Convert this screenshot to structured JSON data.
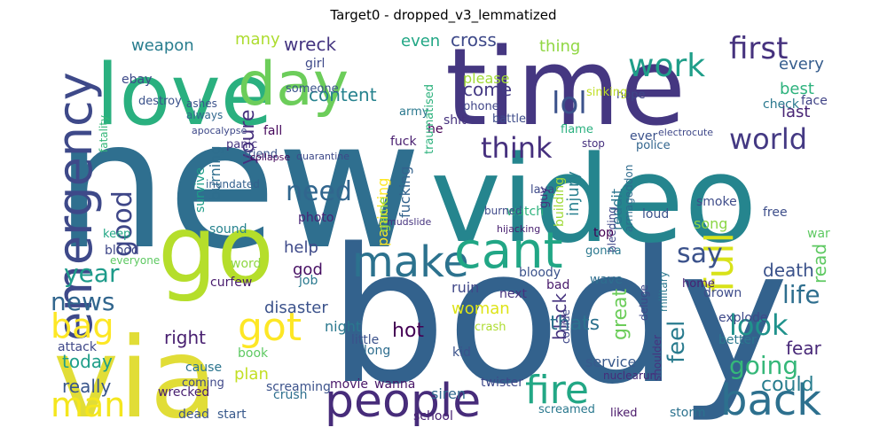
{
  "title": "Target0 - dropped_v3_lemmatized",
  "words": [
    {
      "text": "new",
      "color": "#2f6f8f"
    },
    {
      "text": "body",
      "color": "#33628d"
    },
    {
      "text": "time",
      "color": "#453781"
    },
    {
      "text": "video",
      "color": "#25858e"
    },
    {
      "text": "via",
      "color": "#e1dd37"
    },
    {
      "text": "go",
      "color": "#b5de2b"
    },
    {
      "text": "love",
      "color": "#2ab07f"
    },
    {
      "text": "day",
      "color": "#6ccd5a"
    },
    {
      "text": "emergency",
      "color": "#3e4989"
    },
    {
      "text": "people",
      "color": "#472c7a"
    },
    {
      "text": "make",
      "color": "#2c728e"
    },
    {
      "text": "cant",
      "color": "#21a685"
    },
    {
      "text": "fire",
      "color": "#22a785"
    },
    {
      "text": "back",
      "color": "#2d708e"
    },
    {
      "text": "full",
      "color": "#d8e219"
    },
    {
      "text": "bag",
      "color": "#fde725"
    },
    {
      "text": "got",
      "color": "#fde725"
    },
    {
      "text": "man",
      "color": "#f4e61e"
    },
    {
      "text": "work",
      "color": "#1f9e89"
    },
    {
      "text": "first",
      "color": "#46327e"
    },
    {
      "text": "lol",
      "color": "#3b528b"
    },
    {
      "text": "world",
      "color": "#443983"
    },
    {
      "text": "think",
      "color": "#46307e"
    },
    {
      "text": "look",
      "color": "#20928c"
    },
    {
      "text": "going",
      "color": "#35b779"
    },
    {
      "text": "life",
      "color": "#2e6e8e"
    },
    {
      "text": "news",
      "color": "#31668e"
    },
    {
      "text": "year",
      "color": "#1e9b8a"
    },
    {
      "text": "good",
      "color": "#3f4788"
    },
    {
      "text": "need",
      "color": "#31668e"
    },
    {
      "text": "say",
      "color": "#3b528b"
    },
    {
      "text": "feel",
      "color": "#297b8e"
    },
    {
      "text": "could",
      "color": "#287d8e"
    },
    {
      "text": "right",
      "color": "#481f70"
    },
    {
      "text": "fear",
      "color": "#482878"
    },
    {
      "text": "death",
      "color": "#3b528b"
    },
    {
      "text": "read",
      "color": "#5ec962"
    },
    {
      "text": "today",
      "color": "#1f9e89"
    },
    {
      "text": "really",
      "color": "#39568c"
    },
    {
      "text": "weapon",
      "color": "#287d8e"
    },
    {
      "text": "many",
      "color": "#addc30"
    },
    {
      "text": "wreck",
      "color": "#453581"
    },
    {
      "text": "even",
      "color": "#22a785"
    },
    {
      "text": "cross",
      "color": "#3e4989"
    },
    {
      "text": "thing",
      "color": "#90d743"
    },
    {
      "text": "every",
      "color": "#365d8d"
    },
    {
      "text": "best",
      "color": "#2db27d"
    },
    {
      "text": "last",
      "color": "#482475"
    },
    {
      "text": "come",
      "color": "#443983"
    },
    {
      "text": "content",
      "color": "#26828e"
    },
    {
      "text": "please",
      "color": "#a2da37"
    },
    {
      "text": "help",
      "color": "#3e4a89"
    },
    {
      "text": "god",
      "color": "#471063"
    },
    {
      "text": "disaster",
      "color": "#3b528b"
    },
    {
      "text": "great",
      "color": "#6ccd5a"
    },
    {
      "text": "hot",
      "color": "#440154"
    },
    {
      "text": "black",
      "color": "#46337f"
    },
    {
      "text": "woman",
      "color": "#dde318"
    },
    {
      "text": "night",
      "color": "#2a788e"
    },
    {
      "text": "ruin",
      "color": "#3f4788"
    },
    {
      "text": "thats",
      "color": "#2c718e"
    },
    {
      "text": "fire",
      "color": "#22a785"
    },
    {
      "text": "service",
      "color": "#38598c"
    },
    {
      "text": "siren",
      "color": "#31688e"
    },
    {
      "text": "school",
      "color": "#482173"
    },
    {
      "text": "movie",
      "color": "#481668"
    },
    {
      "text": "wanna",
      "color": "#481668"
    },
    {
      "text": "plan",
      "color": "#c2df23"
    },
    {
      "text": "screaming",
      "color": "#3b528b"
    },
    {
      "text": "injury",
      "color": "#277f8e"
    },
    {
      "text": "burning",
      "color": "#2e6e8e"
    },
    {
      "text": "youre",
      "color": "#46307e"
    },
    {
      "text": "ebay",
      "color": "#3e4a89"
    },
    {
      "text": "fatality",
      "color": "#35b779"
    },
    {
      "text": "girl",
      "color": "#3e4989"
    },
    {
      "text": "someone",
      "color": "#3a538b"
    },
    {
      "text": "always",
      "color": "#31688e"
    },
    {
      "text": "fall",
      "color": "#46085c"
    },
    {
      "text": "panic",
      "color": "#46337f"
    },
    {
      "text": "friend",
      "color": "#3b528b"
    },
    {
      "text": "fuck",
      "color": "#481d6f"
    },
    {
      "text": "shit",
      "color": "#46327e"
    },
    {
      "text": "he",
      "color": "#440154"
    },
    {
      "text": "army",
      "color": "#2a788e"
    },
    {
      "text": "phone",
      "color": "#404588"
    },
    {
      "text": "battle",
      "color": "#3e4c8a"
    },
    {
      "text": "flame",
      "color": "#2ab07f"
    },
    {
      "text": "stop",
      "color": "#46307e"
    },
    {
      "text": "ever",
      "color": "#3b528b"
    },
    {
      "text": "police",
      "color": "#32658e"
    },
    {
      "text": "smoke",
      "color": "#3e4c8a"
    },
    {
      "text": "song",
      "color": "#8bd646"
    },
    {
      "text": "war",
      "color": "#5ec962"
    },
    {
      "text": "check",
      "color": "#2a788e"
    },
    {
      "text": "face",
      "color": "#414487"
    },
    {
      "text": "hope",
      "color": "#3f4788"
    },
    {
      "text": "sinking",
      "color": "#c0df25"
    },
    {
      "text": "electrocute",
      "color": "#3f4889"
    },
    {
      "text": "lava",
      "color": "#3e4a89"
    },
    {
      "text": "watch",
      "color": "#2db27d"
    },
    {
      "text": "guy",
      "color": "#46327e"
    },
    {
      "text": "reddit",
      "color": "#2b758e"
    },
    {
      "text": "loud",
      "color": "#3b528b"
    },
    {
      "text": "bleeding",
      "color": "#3f4788"
    },
    {
      "text": "armageddon",
      "color": "#2f6c8e"
    },
    {
      "text": "free",
      "color": "#3d4e8a"
    },
    {
      "text": "top",
      "color": "#440154"
    },
    {
      "text": "fucking",
      "color": "#33638d"
    },
    {
      "text": "building",
      "color": "#a0da39"
    },
    {
      "text": "little",
      "color": "#3b518b"
    },
    {
      "text": "long",
      "color": "#2e6d8e"
    },
    {
      "text": "bad",
      "color": "#481a6c"
    },
    {
      "text": "next",
      "color": "#46337f"
    },
    {
      "text": "kid",
      "color": "#3b528b"
    },
    {
      "text": "twister",
      "color": "#3e4989"
    },
    {
      "text": "screamed",
      "color": "#2a788e"
    },
    {
      "text": "liked",
      "color": "#481769"
    },
    {
      "text": "storm",
      "color": "#2c728e"
    },
    {
      "text": "crush",
      "color": "#2e6f8e"
    },
    {
      "text": "start",
      "color": "#38598c"
    },
    {
      "text": "dead",
      "color": "#3b528b"
    },
    {
      "text": "wrecked",
      "color": "#482071"
    },
    {
      "text": "coming",
      "color": "#3f4889"
    },
    {
      "text": "cause",
      "color": "#2b748e"
    },
    {
      "text": "book",
      "color": "#5ec962"
    },
    {
      "text": "attack",
      "color": "#3f4889"
    },
    {
      "text": "job",
      "color": "#29798e"
    },
    {
      "text": "word",
      "color": "#8fd744"
    },
    {
      "text": "sound",
      "color": "#26828e"
    },
    {
      "text": "curfew",
      "color": "#481b6d"
    },
    {
      "text": "blood",
      "color": "#3f4788"
    },
    {
      "text": "keep",
      "color": "#22a785"
    },
    {
      "text": "everyone",
      "color": "#5ec962"
    },
    {
      "text": "survive",
      "color": "#1f9e89"
    },
    {
      "text": "photo",
      "color": "#482677"
    },
    {
      "text": "wave",
      "color": "#2e6e8e"
    },
    {
      "text": "collide",
      "color": "#3f4889"
    },
    {
      "text": "bloody",
      "color": "#3b528b"
    },
    {
      "text": "nuclear",
      "color": "#472c7a"
    },
    {
      "text": "run",
      "color": "#472c7a"
    },
    {
      "text": "shoulder",
      "color": "#46337f"
    },
    {
      "text": "deluge",
      "color": "#3f4889"
    },
    {
      "text": "military",
      "color": "#2a788e"
    },
    {
      "text": "drown",
      "color": "#3e4c8a"
    },
    {
      "text": "home",
      "color": "#482173"
    },
    {
      "text": "explode",
      "color": "#3e4989"
    },
    {
      "text": "better",
      "color": "#2a788e"
    },
    {
      "text": "crash",
      "color": "#addc30"
    },
    {
      "text": "inundated",
      "color": "#34608d"
    },
    {
      "text": "apocalypse",
      "color": "#3e4989"
    },
    {
      "text": "destroy",
      "color": "#3b528b"
    },
    {
      "text": "ashes",
      "color": "#3b528b"
    },
    {
      "text": "traumatised",
      "color": "#2db27d"
    },
    {
      "text": "gonna",
      "color": "#2a788e"
    },
    {
      "text": "panicking",
      "color": "#fde725"
    },
    {
      "text": "burned",
      "color": "#3e4989"
    },
    {
      "text": "game",
      "color": "#8fd744"
    },
    {
      "text": "hijacking",
      "color": "#481f70"
    },
    {
      "text": "mudslide",
      "color": "#46337f"
    },
    {
      "text": "quarantine",
      "color": "#3e4989"
    },
    {
      "text": "collapse",
      "color": "#46085c"
    }
  ]
}
